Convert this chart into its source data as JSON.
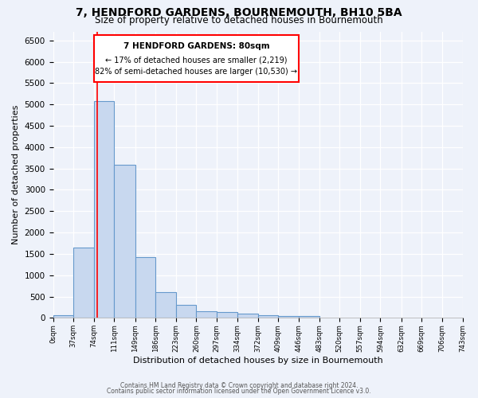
{
  "title": "7, HENDFORD GARDENS, BOURNEMOUTH, BH10 5BA",
  "subtitle": "Size of property relative to detached houses in Bournemouth",
  "xlabel": "Distribution of detached houses by size in Bournemouth",
  "ylabel": "Number of detached properties",
  "bin_edges": [
    0,
    37,
    74,
    111,
    149,
    186,
    223,
    260,
    297,
    334,
    372,
    409,
    446,
    483,
    520,
    557,
    594,
    632,
    669,
    706,
    743
  ],
  "bin_values": [
    60,
    1640,
    5080,
    3580,
    1420,
    610,
    300,
    150,
    140,
    110,
    60,
    40,
    50,
    0,
    0,
    0,
    0,
    0,
    0,
    0
  ],
  "bar_color": "#c8d8ef",
  "bar_edge_color": "#6699cc",
  "property_line_x": 80,
  "property_line_color": "red",
  "ylim": [
    0,
    6700
  ],
  "xlim": [
    0,
    743
  ],
  "yticks": [
    0,
    500,
    1000,
    1500,
    2000,
    2500,
    3000,
    3500,
    4000,
    4500,
    5000,
    5500,
    6000,
    6500
  ],
  "annotation_title": "7 HENDFORD GARDENS: 80sqm",
  "annotation_line1": "← 17% of detached houses are smaller (2,219)",
  "annotation_line2": "82% of semi-detached houses are larger (10,530) →",
  "tick_labels": [
    "0sqm",
    "37sqm",
    "74sqm",
    "111sqm",
    "149sqm",
    "186sqm",
    "223sqm",
    "260sqm",
    "297sqm",
    "334sqm",
    "372sqm",
    "409sqm",
    "446sqm",
    "483sqm",
    "520sqm",
    "557sqm",
    "594sqm",
    "632sqm",
    "669sqm",
    "706sqm",
    "743sqm"
  ],
  "footer1": "Contains HM Land Registry data © Crown copyright and database right 2024.",
  "footer2": "Contains public sector information licensed under the Open Government Licence v3.0.",
  "bg_color": "#eef2fa",
  "plot_bg_color": "#eef2fa",
  "grid_color": "#ffffff",
  "title_fontsize": 10,
  "subtitle_fontsize": 8.5
}
